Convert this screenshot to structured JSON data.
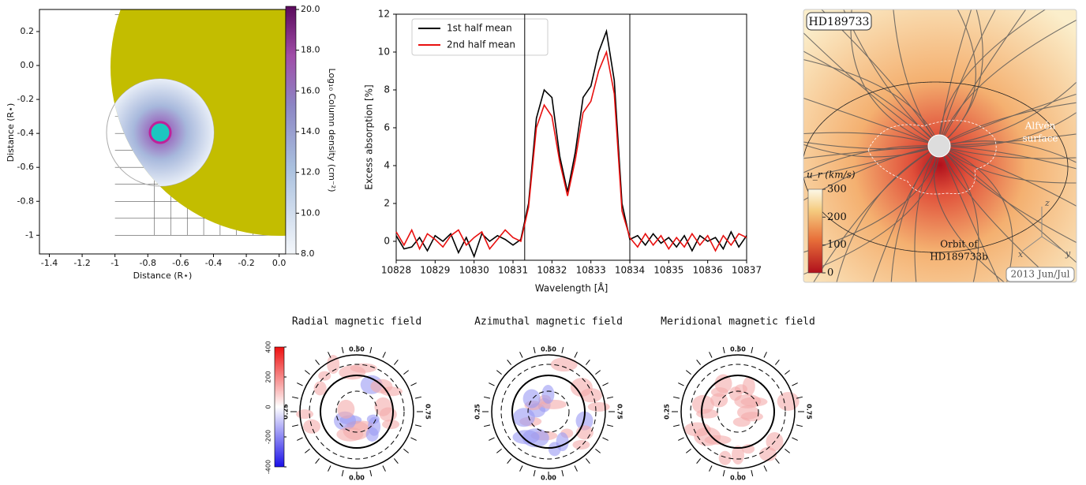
{
  "chart_data": [
    {
      "type": "map",
      "xlabel": "Distance (R⋆)",
      "ylabel": "Distance (R⋆)",
      "xlim": [
        -1.46,
        0.04
      ],
      "ylim": [
        -1.11,
        0.33
      ],
      "xticks": [
        -1.4,
        -1.2,
        -1.0,
        -0.8,
        -0.6,
        -0.4,
        -0.2,
        {
          "value": 0,
          "label": "0.0"
        }
      ],
      "yticks": [
        0.2,
        {
          "value": 0,
          "label": "0.0"
        },
        -0.2,
        -0.4,
        -0.6,
        -0.8,
        -1.0
      ],
      "colorbar": {
        "label": "Log₁₀ Column density (cm⁻²)",
        "lim": [
          8,
          20
        ],
        "ticks": [
          {
            "value": 8,
            "label": "8.0"
          },
          {
            "value": 10,
            "label": "10.0"
          },
          {
            "value": 12,
            "label": "12.0"
          },
          {
            "value": 14,
            "label": "14.0"
          },
          {
            "value": 16,
            "label": "16.0"
          },
          {
            "value": 18,
            "label": "18.0"
          },
          {
            "value": 20,
            "label": "20.0"
          }
        ]
      }
    },
    {
      "type": "line",
      "xlabel": "Wavelength [Å]",
      "ylabel": "Excess absorption [%]",
      "xlim": [
        10828,
        10837
      ],
      "ylim": [
        -1,
        12
      ],
      "xticks": [
        10828,
        10829,
        10830,
        10831,
        10832,
        10833,
        10834,
        10835,
        10836,
        10837
      ],
      "yticks": [
        0,
        2,
        4,
        6,
        8,
        10,
        12
      ],
      "vlines": [
        10831.3,
        10834.0
      ],
      "legend": "upper-left",
      "x": [
        10828.0,
        10828.2,
        10828.4,
        10828.6,
        10828.8,
        10829.0,
        10829.2,
        10829.4,
        10829.6,
        10829.8,
        10830.0,
        10830.2,
        10830.4,
        10830.6,
        10830.8,
        10831.0,
        10831.2,
        10831.4,
        10831.6,
        10831.8,
        10832.0,
        10832.2,
        10832.4,
        10832.6,
        10832.8,
        10833.0,
        10833.2,
        10833.4,
        10833.6,
        10833.8,
        10834.0,
        10834.2,
        10834.4,
        10834.6,
        10834.8,
        10835.0,
        10835.2,
        10835.4,
        10835.6,
        10835.8,
        10836.0,
        10836.2,
        10836.4,
        10836.6,
        10836.8,
        10837.0
      ],
      "series": [
        {
          "name": "1st half mean",
          "color": "#000000",
          "values": [
            0.3,
            -0.4,
            -0.3,
            0.2,
            -0.5,
            0.3,
            0.0,
            0.4,
            -0.6,
            0.2,
            -0.8,
            0.4,
            0.0,
            0.3,
            0.1,
            -0.2,
            0.1,
            2.0,
            6.5,
            8.0,
            7.6,
            4.5,
            2.6,
            4.7,
            7.6,
            8.2,
            10.0,
            11.1,
            8.5,
            2.0,
            0.1,
            0.3,
            -0.2,
            0.4,
            -0.1,
            0.2,
            -0.3,
            0.3,
            -0.5,
            0.3,
            0.0,
            0.2,
            -0.4,
            0.5,
            -0.3,
            0.3
          ]
        },
        {
          "name": "2nd half mean",
          "color": "#e8100f",
          "values": [
            0.5,
            -0.2,
            0.6,
            -0.4,
            0.4,
            0.1,
            -0.3,
            0.3,
            0.6,
            -0.2,
            0.2,
            0.5,
            -0.4,
            0.1,
            0.6,
            0.2,
            0.0,
            1.8,
            6.0,
            7.2,
            6.6,
            4.2,
            2.4,
            4.3,
            6.8,
            7.4,
            9.0,
            10.0,
            7.8,
            1.6,
            0.2,
            -0.3,
            0.4,
            -0.2,
            0.3,
            -0.4,
            0.2,
            -0.3,
            0.4,
            -0.2,
            0.3,
            -0.5,
            0.3,
            -0.2,
            0.4,
            0.2
          ]
        }
      ]
    },
    {
      "type": "field",
      "star": "HD189733",
      "surface": [
        "Alfvén",
        "surface"
      ],
      "orbit": [
        "Orbit of",
        "HD189733b"
      ],
      "date": "2013 Jun/Jul",
      "axes": [
        "x",
        "y",
        "z"
      ],
      "colorbar": {
        "label": "u_r (km/s)",
        "lim": [
          0,
          300
        ],
        "ticks": [
          0,
          100,
          200,
          300
        ]
      }
    },
    {
      "type": "polar",
      "title": "Radial magnetic field",
      "phases": [
        "0.50",
        "0.75",
        "0.00",
        "0.25"
      ],
      "colorbar": {
        "lim": [
          -400,
          400
        ],
        "ticks": [
          -400,
          -200,
          0,
          200,
          400
        ]
      }
    },
    {
      "type": "polar",
      "title": "Azimuthal magnetic field",
      "phases": [
        "0.50",
        "0.75",
        "0.00",
        "0.25"
      ]
    },
    {
      "type": "polar",
      "title": "Meridional magnetic field",
      "phases": [
        "0.50",
        "0.75",
        "0.00",
        "0.25"
      ]
    }
  ]
}
